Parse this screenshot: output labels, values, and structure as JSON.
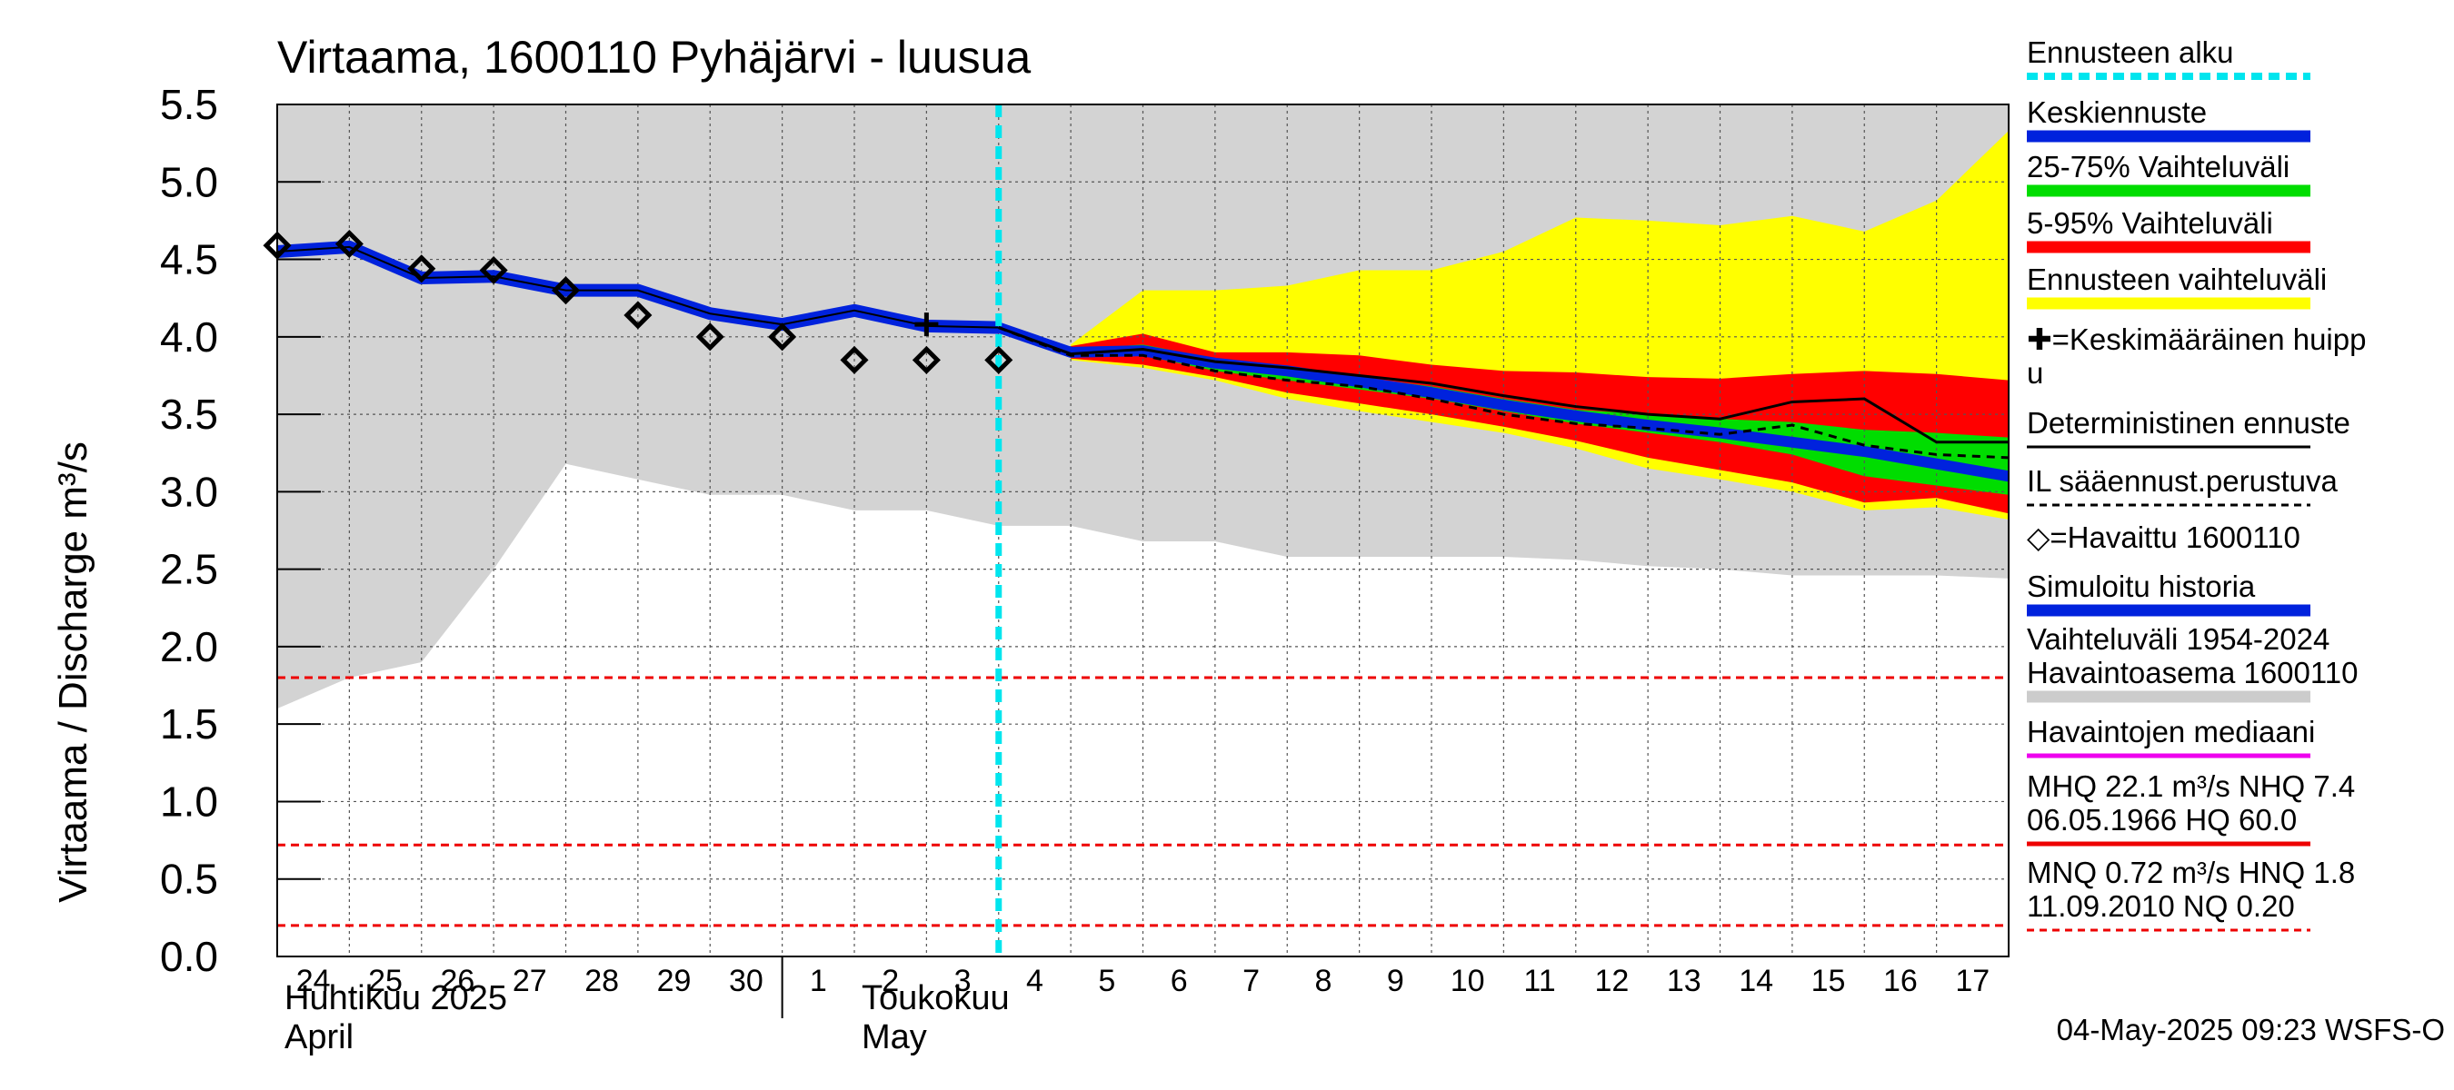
{
  "chart_data": {
    "type": "line",
    "title": "Virtaama, 1600110 Pyhäjärvi - luusua",
    "ylabel": "Virtaama / Discharge   m³/s",
    "ylim": [
      0,
      5.5
    ],
    "yticks": [
      "0.0",
      "0.5",
      "1.0",
      "1.5",
      "2.0",
      "2.5",
      "3.0",
      "3.5",
      "4.0",
      "4.5",
      "5.0",
      "5.5"
    ],
    "x_day_numbers": [
      "24",
      "25",
      "26",
      "27",
      "28",
      "29",
      "30",
      "1",
      "2",
      "3",
      "4",
      "5",
      "6",
      "7",
      "8",
      "9",
      "10",
      "11",
      "12",
      "13",
      "14",
      "15",
      "16",
      "17"
    ],
    "x_month_labels": [
      {
        "text": "Huhtikuu  2025",
        "day_index": 0,
        "line": 1
      },
      {
        "text": "April",
        "day_index": 0,
        "line": 2
      },
      {
        "text": "Toukokuu",
        "day_index": 8,
        "line": 1
      },
      {
        "text": "May",
        "day_index": 8,
        "line": 2
      }
    ],
    "forecast_start_index": 10,
    "days": [
      0,
      1,
      2,
      3,
      4,
      5,
      6,
      7,
      8,
      9,
      10,
      11,
      12,
      13,
      14,
      15,
      16,
      17,
      18,
      19,
      20,
      21,
      22,
      23,
      24
    ],
    "history_band": {
      "upper": [
        5.5,
        5.5,
        5.5,
        5.5,
        5.5,
        5.5,
        5.5,
        5.5,
        5.5,
        5.5,
        5.5,
        5.5,
        5.5,
        5.5,
        5.5,
        5.5,
        5.5,
        5.5,
        5.5,
        5.5,
        5.5,
        5.5,
        5.5,
        5.5,
        5.5
      ],
      "lower": [
        1.6,
        1.8,
        1.9,
        2.5,
        3.18,
        3.08,
        2.98,
        2.98,
        2.88,
        2.88,
        2.78,
        2.78,
        2.68,
        2.68,
        2.58,
        2.58,
        2.58,
        2.58,
        2.56,
        2.52,
        2.5,
        2.46,
        2.46,
        2.46,
        2.44
      ]
    },
    "forecast_days": [
      11,
      12,
      13,
      14,
      15,
      16,
      17,
      18,
      19,
      20,
      21,
      22,
      23,
      24
    ],
    "ensemble_range": {
      "upper": [
        3.95,
        4.3,
        4.3,
        4.33,
        4.43,
        4.43,
        4.55,
        4.77,
        4.75,
        4.72,
        4.78,
        4.68,
        4.88,
        5.33
      ],
      "lower": [
        3.85,
        3.8,
        3.72,
        3.6,
        3.52,
        3.45,
        3.38,
        3.28,
        3.15,
        3.08,
        3.0,
        2.88,
        2.9,
        2.82
      ]
    },
    "band_5_95": {
      "upper": [
        3.94,
        4.02,
        3.9,
        3.9,
        3.88,
        3.82,
        3.78,
        3.77,
        3.74,
        3.73,
        3.76,
        3.78,
        3.76,
        3.72
      ],
      "lower": [
        3.86,
        3.82,
        3.74,
        3.64,
        3.57,
        3.5,
        3.42,
        3.33,
        3.22,
        3.14,
        3.06,
        2.93,
        2.96,
        2.86
      ]
    },
    "band_25_75": {
      "upper": [
        3.92,
        3.95,
        3.86,
        3.8,
        3.74,
        3.68,
        3.6,
        3.53,
        3.5,
        3.47,
        3.45,
        3.4,
        3.38,
        3.35
      ],
      "lower": [
        3.88,
        3.88,
        3.78,
        3.72,
        3.66,
        3.6,
        3.52,
        3.44,
        3.38,
        3.32,
        3.24,
        3.1,
        3.04,
        2.98
      ]
    },
    "series": [
      {
        "name": "Simuloitu historia",
        "x": [
          0,
          1,
          2,
          3,
          4,
          5,
          6,
          7,
          8,
          9,
          10
        ],
        "values": [
          4.55,
          4.58,
          4.38,
          4.39,
          4.3,
          4.3,
          4.15,
          4.08,
          4.17,
          4.07,
          4.06
        ]
      },
      {
        "name": "Keskiennuste",
        "x": [
          10,
          11,
          12,
          13,
          14,
          15,
          16,
          17,
          18,
          19,
          20,
          21,
          22,
          23,
          24
        ],
        "values": [
          4.06,
          3.9,
          3.91,
          3.83,
          3.78,
          3.71,
          3.64,
          3.56,
          3.49,
          3.43,
          3.38,
          3.32,
          3.26,
          3.18,
          3.1
        ]
      },
      {
        "name": "Deterministinen ennuste",
        "x": [
          10,
          11,
          12,
          13,
          14,
          15,
          16,
          17,
          18,
          19,
          20,
          21,
          22,
          23,
          24
        ],
        "values": [
          4.06,
          3.89,
          3.92,
          3.84,
          3.8,
          3.75,
          3.7,
          3.62,
          3.55,
          3.5,
          3.47,
          3.58,
          3.6,
          3.32,
          3.32
        ]
      },
      {
        "name": "IL sääennust.perustuva",
        "x": [
          10,
          11,
          12,
          13,
          14,
          15,
          16,
          17,
          18,
          19,
          20,
          21,
          22,
          23,
          24
        ],
        "values": [
          4.06,
          3.88,
          3.88,
          3.78,
          3.72,
          3.68,
          3.6,
          3.5,
          3.44,
          3.41,
          3.37,
          3.43,
          3.3,
          3.24,
          3.22
        ]
      }
    ],
    "observed": {
      "name": "Havaittu 1600110",
      "x": [
        0,
        1,
        2,
        3,
        4,
        5,
        6,
        7,
        8,
        9,
        10
      ],
      "values": [
        4.59,
        4.6,
        4.44,
        4.43,
        4.3,
        4.14,
        4.0,
        4.0,
        3.85,
        3.85,
        3.85
      ]
    },
    "mean_peak": {
      "x": 9,
      "value": 4.08
    },
    "reference_lines": [
      {
        "name": "HNQ",
        "value": 1.8
      },
      {
        "name": "MNQ",
        "value": 0.72
      },
      {
        "name": "NQ",
        "value": 0.2
      }
    ],
    "legend": [
      {
        "label": "Ennusteen alku",
        "color": "#00e5ee",
        "style": "dashed"
      },
      {
        "label": "Keskiennuste",
        "color": "#0022dd",
        "style": "thick"
      },
      {
        "label": "25-75% Vaihteluväli",
        "color": "#00dd00",
        "style": "thick"
      },
      {
        "label": "5-95% Vaihteluväli",
        "color": "#ff0000",
        "style": "thick"
      },
      {
        "label": "Ennusteen vaihteluväli",
        "color": "#ffff00",
        "style": "thick"
      },
      {
        "label": "✚=Keskimääräinen huipp",
        "label2": "u",
        "color": "#000000",
        "style": "none"
      },
      {
        "label": "Deterministinen ennuste",
        "color": "#000000",
        "style": "thin"
      },
      {
        "label": "IL sääennust.perustuva",
        "color": "#000000",
        "style": "dotted"
      },
      {
        "label": "◇=Havaittu 1600110",
        "color": "#000000",
        "style": "none"
      },
      {
        "label": "Simuloitu historia",
        "color": "#0022dd",
        "style": "thick"
      },
      {
        "label": "Vaihteluväli 1954-2024",
        "label2": " Havaintoasema 1600110",
        "color": "#cccccc",
        "style": "thick"
      },
      {
        "label": "Havaintojen mediaani",
        "color": "#ee00ee",
        "style": "medium"
      },
      {
        "label": "MHQ 22.1 m³/s NHQ  7.4",
        "label2": "06.05.1966 HQ 60.0",
        "color": "#ee0000",
        "style": "medium"
      },
      {
        "label": "MNQ 0.72 m³/s HNQ  1.8",
        "label2": "11.09.2010 NQ 0.20",
        "color": "#ee0000",
        "style": "dashed-red"
      }
    ],
    "footer": "04-May-2025 09:23 WSFS-O"
  },
  "colors": {
    "history_band": "#d3d3d3",
    "ensemble": "#ffff00",
    "band_5_95": "#ff0000",
    "band_25_75": "#00dd00",
    "mean_forecast": "#0022dd",
    "forecast_start": "#00e5ee",
    "reference": "#ee0000"
  }
}
